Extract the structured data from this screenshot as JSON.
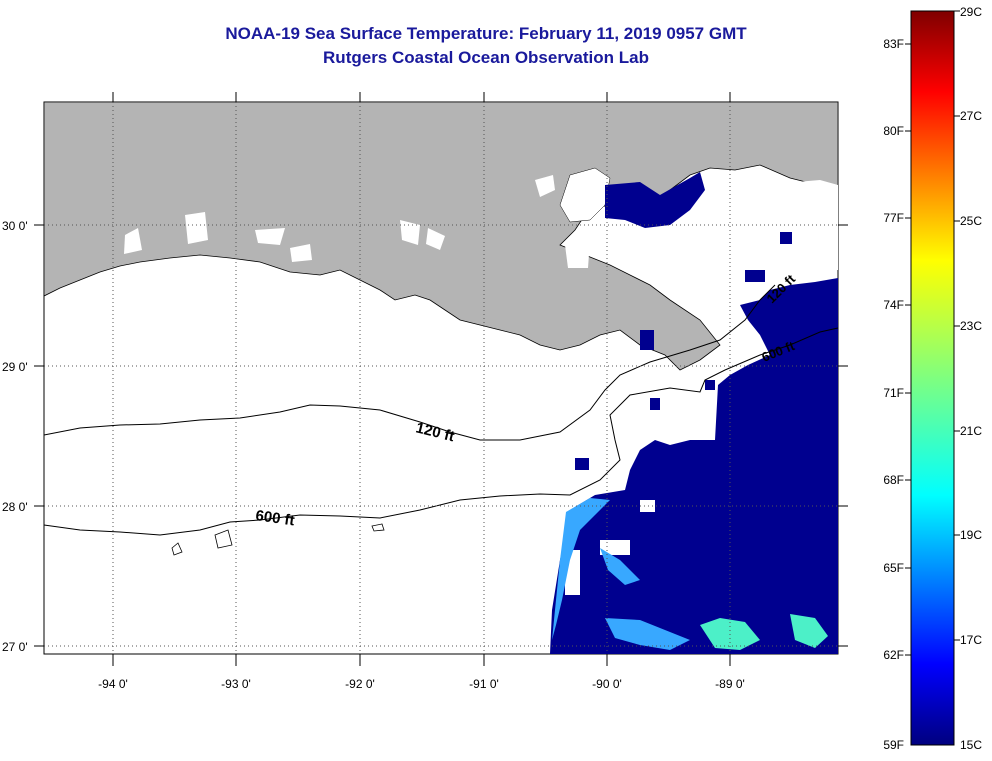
{
  "title": {
    "line1": "NOAA-19 Sea Surface Temperature:  February 11, 2019 0957 GMT",
    "line2": "Rutgers Coastal Ocean Observation Lab"
  },
  "map": {
    "lat_ticks": [
      "30 0'",
      "29 0'",
      "28 0'",
      "27 0'"
    ],
    "lon_ticks": [
      "-94 0'",
      "-93 0'",
      "-92 0'",
      "-91 0'",
      "-90 0'",
      "-89 0'"
    ],
    "contour_labels": [
      "120 ft",
      "600 ft",
      "600 ft",
      "120 ft"
    ],
    "colors": {
      "land": "#b4b4b4",
      "cold_sst": "#00008f",
      "warm_patch": "#38a8ff",
      "cyan_patch": "#4cf0c8",
      "contour": "#000000"
    }
  },
  "colorbar": {
    "fahrenheit_labels": [
      "83F",
      "80F",
      "77F",
      "74F",
      "71F",
      "68F",
      "65F",
      "62F",
      "59F"
    ],
    "celsius_labels": [
      "29C",
      "27C",
      "25C",
      "23C",
      "21C",
      "19C",
      "17C",
      "15C"
    ],
    "range_c": [
      15,
      29
    ],
    "range_f": [
      59,
      84
    ]
  }
}
